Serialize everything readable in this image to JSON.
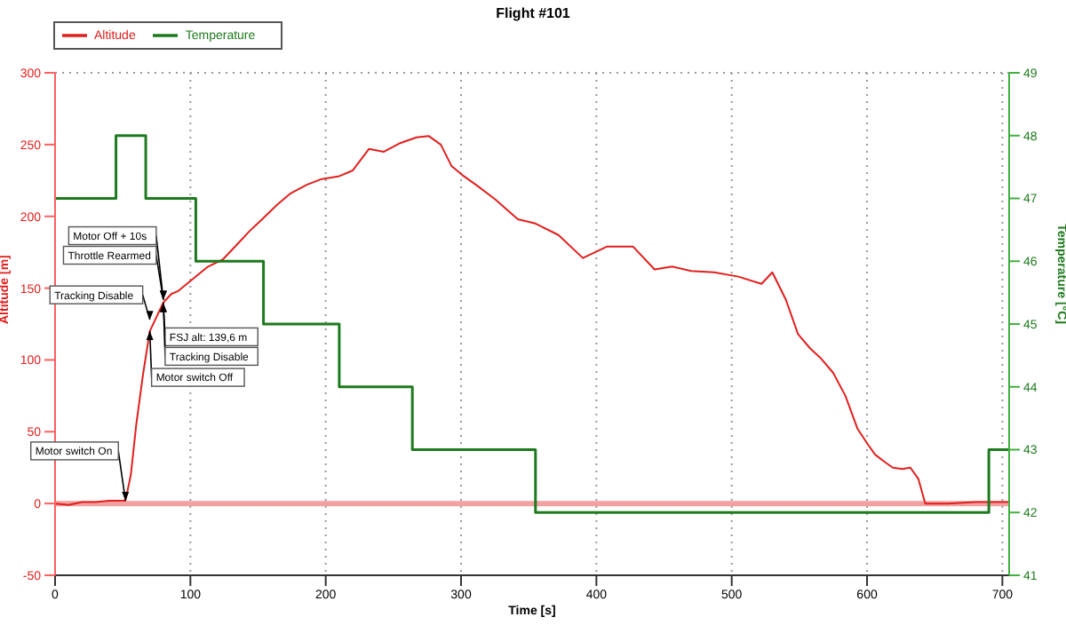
{
  "chart_data": {
    "type": "line",
    "title": "Flight #101",
    "xlabel": "Time [s]",
    "ylabel": "Altitude [m]",
    "y2label": "Temperature [°C]",
    "xlim": [
      0,
      705
    ],
    "xticks": [
      0,
      100,
      200,
      300,
      400,
      500,
      600,
      700
    ],
    "ylim": [
      -50,
      300
    ],
    "yticks": [
      -50,
      0,
      50,
      100,
      150,
      200,
      250,
      300
    ],
    "y2lim": [
      41,
      49
    ],
    "y2ticks": [
      41,
      42,
      43,
      44,
      45,
      46,
      47,
      48,
      49
    ],
    "grid": true,
    "legend": "top left",
    "marker": "none",
    "line_style": "solid",
    "series": [
      {
        "name": "Altitude",
        "color": "#e0201e",
        "x": [
          0,
          10,
          20,
          30,
          40,
          52,
          56,
          60,
          65,
          70,
          75,
          80,
          86,
          91,
          100,
          113,
          124,
          135,
          144,
          153,
          164,
          174,
          186,
          197,
          210,
          220,
          232,
          243,
          255,
          267,
          276,
          285,
          293,
          302,
          311,
          325,
          342,
          355,
          372,
          390,
          408,
          427,
          443,
          456,
          470,
          487,
          505,
          522,
          530,
          540,
          549,
          558,
          566,
          575,
          584,
          593,
          600,
          606,
          613,
          619,
          626,
          632,
          638,
          643,
          660,
          680,
          705
        ],
        "values": [
          0,
          -1,
          1,
          1,
          2,
          2,
          20,
          55,
          90,
          120,
          130,
          140,
          146,
          148,
          155,
          165,
          170,
          181,
          190,
          198,
          208,
          216,
          222,
          226,
          228,
          232,
          247,
          245,
          251,
          255,
          256,
          250,
          235,
          228,
          222,
          212,
          198,
          195,
          187,
          171,
          179,
          179,
          163,
          165,
          162,
          161,
          158,
          153,
          161,
          142,
          118,
          108,
          101,
          91,
          75,
          52,
          42,
          34,
          29,
          25,
          24,
          25,
          17,
          0,
          0,
          1,
          1
        ]
      },
      {
        "name": "Temperature",
        "color": "#1e7a1e",
        "type": "step",
        "axis": "y2",
        "x": [
          0,
          45,
          67,
          104,
          154,
          210,
          264,
          355,
          690,
          705
        ],
        "values": [
          47,
          48,
          47,
          46,
          45,
          44,
          43,
          42,
          43,
          43
        ]
      }
    ],
    "ref_lines": [
      {
        "axis": "y",
        "value": 0,
        "color": "#f2a0a0"
      }
    ],
    "annotations": [
      {
        "text": "Motor switch On",
        "x": 52,
        "y": 2
      },
      {
        "text": "Motor switch Off",
        "x": 70,
        "y": 120
      },
      {
        "text": "Tracking Disable",
        "x": 70,
        "y": 128
      },
      {
        "text": "FSJ alt: 139,6 m",
        "x": 80,
        "y": 139.6
      },
      {
        "text": "Tracking Disable",
        "x": 80,
        "y": 139.6
      },
      {
        "text": "Throttle Rearmed",
        "x": 80,
        "y": 142
      },
      {
        "text": "Motor Off + 10s",
        "x": 80,
        "y": 142
      }
    ]
  }
}
